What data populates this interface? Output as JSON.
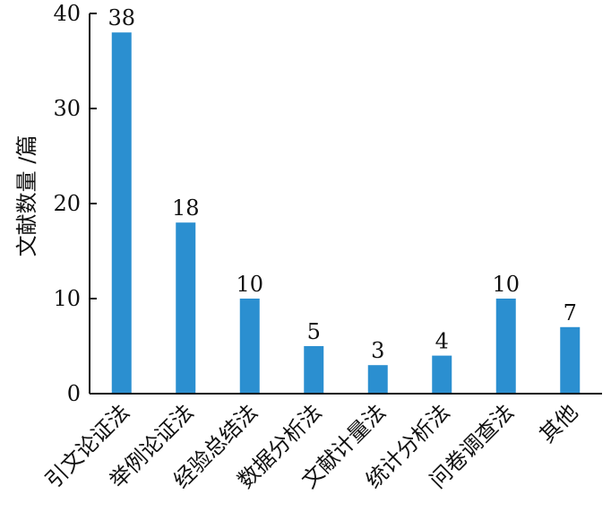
{
  "chart_data": {
    "type": "bar",
    "title": "",
    "xlabel": "",
    "ylabel": "文献数量 /篇",
    "categories": [
      "引文论证法",
      "举例论证法",
      "经验总结法",
      "数据分析法",
      "文献计量法",
      "统计分析法",
      "问卷调查法",
      "其他"
    ],
    "values": [
      38,
      18,
      10,
      5,
      3,
      4,
      10,
      7
    ],
    "data_labels": [
      "38",
      "18",
      "10",
      "5",
      "3",
      "4",
      "10",
      "7"
    ],
    "ylim": [
      0,
      40
    ],
    "yticks": [
      "0",
      "10",
      "20",
      "30",
      "40"
    ],
    "bar_color": "#2b8fd0",
    "grid": false,
    "legend": "none"
  }
}
